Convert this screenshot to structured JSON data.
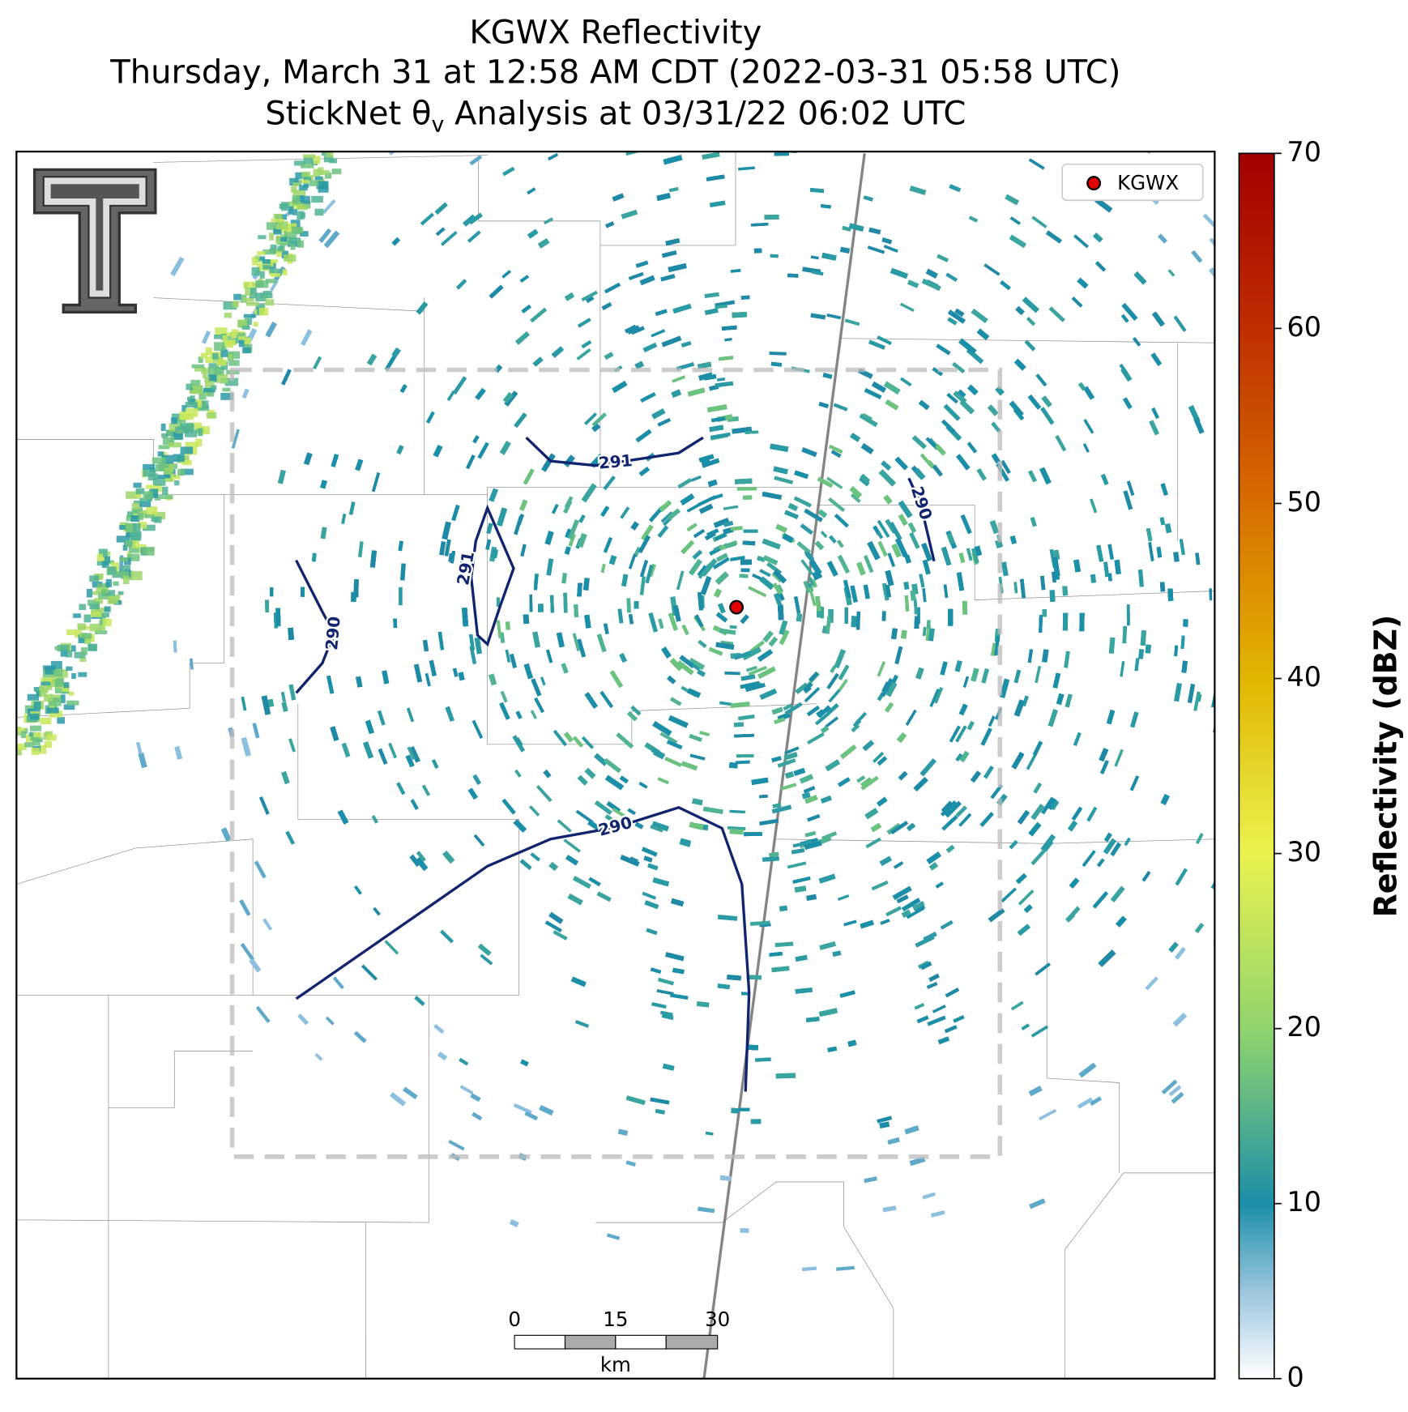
{
  "title": {
    "line1": "KGWX Reflectivity",
    "line2": "Thursday, March 31 at 12:58 AM CDT (2022-03-31 05:58 UTC)",
    "line3": {
      "before": "StickNet θ",
      "sub": "v",
      "after": " Analysis at 03/31/22 06:02 UTC"
    }
  },
  "legend": {
    "label": "KGWX"
  },
  "colorbar": {
    "label": "Reflectivity (dBZ)",
    "lim": [
      0,
      70
    ],
    "ticks": [
      0,
      10,
      20,
      30,
      40,
      50,
      60,
      70
    ]
  },
  "contours": [
    {
      "label": "291"
    },
    {
      "label": "291"
    },
    {
      "label": "290"
    },
    {
      "label": "290"
    },
    {
      "label": "290"
    }
  ],
  "scale_bar": {
    "ticks": [
      "0",
      "15",
      "30"
    ],
    "unit": "km"
  }
}
